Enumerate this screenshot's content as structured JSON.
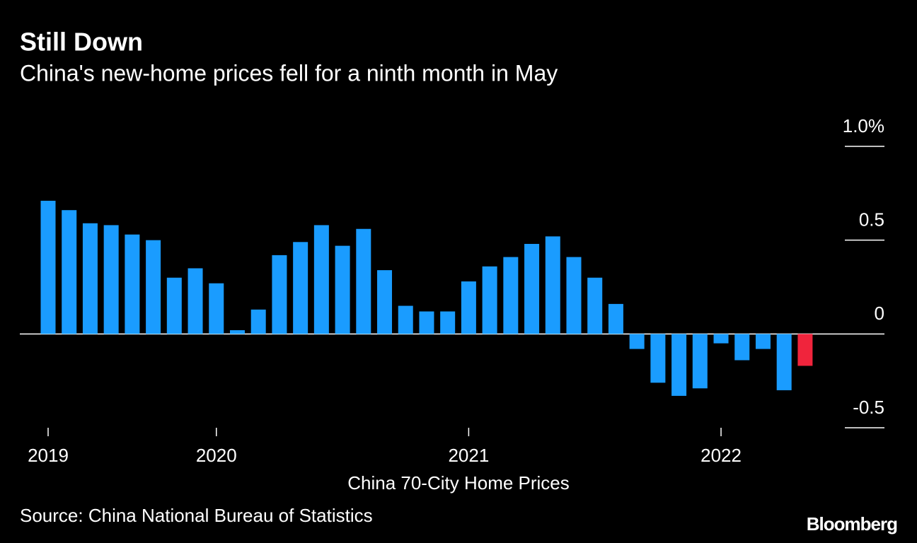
{
  "chart_data": {
    "type": "bar",
    "title": "Still Down",
    "subtitle": "China's new-home prices fell for a ninth month in May",
    "x_label": "China 70-City Home Prices",
    "source": "Source: China National Bureau of Statistics",
    "brand": "Bloomberg",
    "categories": [
      "2019",
      null,
      null,
      null,
      null,
      null,
      null,
      null,
      "2020",
      null,
      null,
      null,
      null,
      null,
      null,
      null,
      null,
      null,
      null,
      null,
      "2021",
      null,
      null,
      null,
      null,
      null,
      null,
      null,
      null,
      null,
      null,
      null,
      "2022",
      null,
      null,
      null,
      null
    ],
    "values": [
      0.71,
      0.66,
      0.59,
      0.58,
      0.53,
      0.5,
      0.3,
      0.35,
      0.27,
      0.02,
      0.13,
      0.42,
      0.49,
      0.58,
      0.47,
      0.56,
      0.34,
      0.15,
      0.12,
      0.12,
      0.28,
      0.36,
      0.41,
      0.48,
      0.52,
      0.41,
      0.3,
      0.16,
      -0.08,
      -0.26,
      -0.33,
      -0.29,
      -0.05,
      -0.14,
      -0.08,
      -0.3,
      -0.17
    ],
    "colors": [
      "#1a9cff",
      "#1a9cff",
      "#1a9cff",
      "#1a9cff",
      "#1a9cff",
      "#1a9cff",
      "#1a9cff",
      "#1a9cff",
      "#1a9cff",
      "#1a9cff",
      "#1a9cff",
      "#1a9cff",
      "#1a9cff",
      "#1a9cff",
      "#1a9cff",
      "#1a9cff",
      "#1a9cff",
      "#1a9cff",
      "#1a9cff",
      "#1a9cff",
      "#1a9cff",
      "#1a9cff",
      "#1a9cff",
      "#1a9cff",
      "#1a9cff",
      "#1a9cff",
      "#1a9cff",
      "#1a9cff",
      "#1a9cff",
      "#1a9cff",
      "#1a9cff",
      "#1a9cff",
      "#1a9cff",
      "#1a9cff",
      "#1a9cff",
      "#1a9cff",
      "#f0243c"
    ],
    "ylim": [
      -0.5,
      1.0
    ],
    "yticks": [
      {
        "value": 1.0,
        "label": "1.0%"
      },
      0.5,
      0,
      -0.5
    ]
  }
}
